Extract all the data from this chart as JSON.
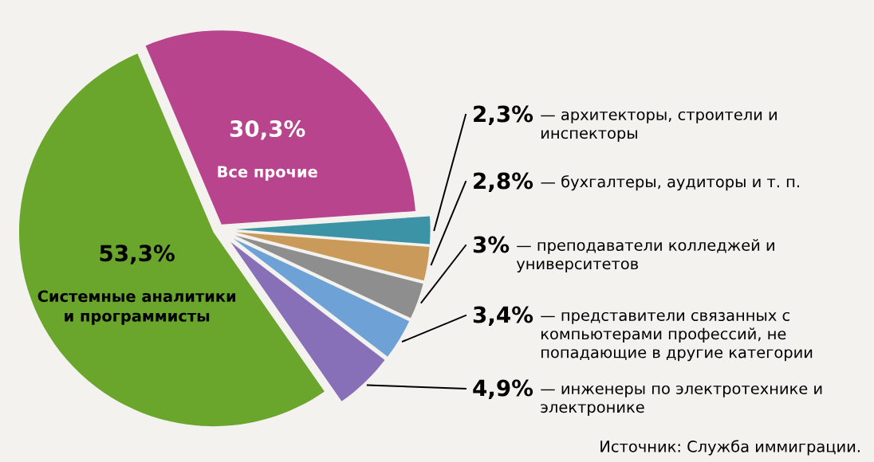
{
  "chart_data": {
    "type": "pie",
    "categories": [
      "Все прочие",
      "— архитекторы, строители и инспекторы",
      "— бухгалтеры, аудиторы и т. п.",
      "— преподаватели колледжей и университетов",
      "— представители связанных с компьютерами профессий, не попадающие в другие категории",
      "— инженеры по электротехнике и электронике",
      "Системные аналитики и программисты"
    ],
    "values": [
      30.3,
      2.3,
      2.8,
      3,
      3.4,
      4.9,
      53.3
    ],
    "value_labels": [
      "30,3%",
      "2,3%",
      "2,8%",
      "3%",
      "3,4%",
      "4,9%",
      "53,3%"
    ],
    "colors": [
      "#b8448e",
      "#3d93a6",
      "#c99a5a",
      "#8e8e8e",
      "#6ea2d6",
      "#8870b8",
      "#6aa52c"
    ],
    "annotations": [
      "Источник: Служба иммиграции."
    ]
  }
}
